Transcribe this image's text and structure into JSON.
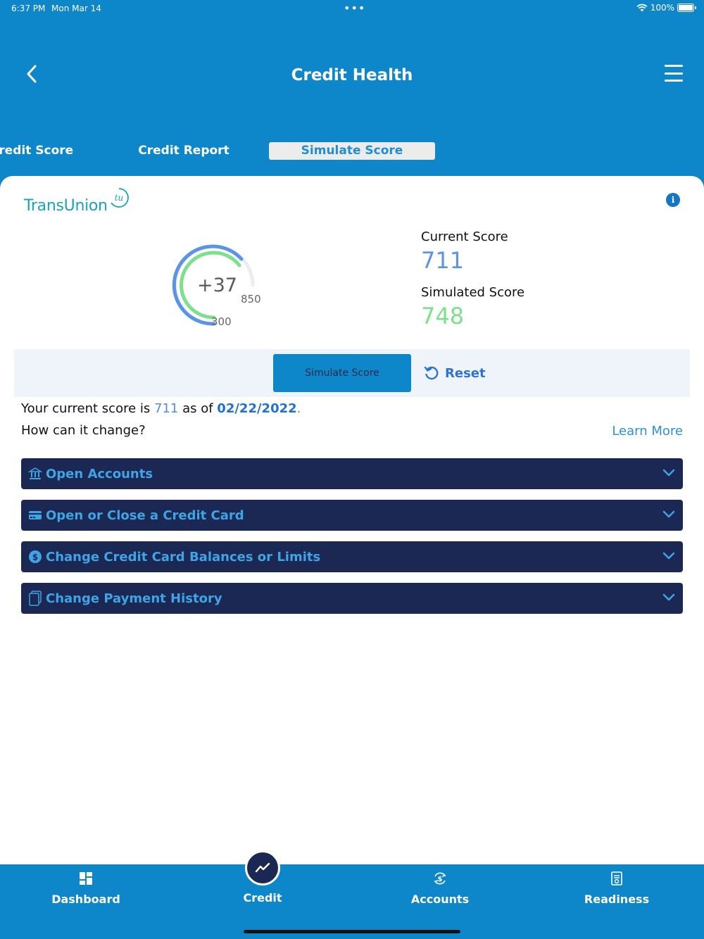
{
  "status_bar": {
    "time": "6:37 PM",
    "date": "Mon Mar 14",
    "battery": "100%"
  },
  "header": {
    "title": "Credit Health"
  },
  "tabs": [
    {
      "label": "Credit Score"
    },
    {
      "label": "Credit Report"
    },
    {
      "label": "Simulate Score"
    }
  ],
  "card": {
    "logo_text": "TransUnion",
    "logo_mark": "tu",
    "gauge": {
      "delta": "+37",
      "min": "300",
      "max": "850"
    },
    "current_score_label": "Current Score",
    "current_score": "711",
    "simulated_score_label": "Simulated Score",
    "simulated_score": "748",
    "simulate_button": "Simulate Score",
    "reset_button": "Reset",
    "summary": {
      "prefix": "Your current score is ",
      "score": "711",
      "middle": " as of ",
      "date": "02/22/2022",
      "suffix": "."
    },
    "question": "How can it change?",
    "learn_more": "Learn More",
    "accordions": [
      {
        "label": "Open Accounts",
        "icon": "bank-icon"
      },
      {
        "label": "Open or Close a Credit Card",
        "icon": "credit-card-icon"
      },
      {
        "label": "Change Credit Card Balances or Limits",
        "icon": "dollar-coin-icon"
      },
      {
        "label": "Change Payment History",
        "icon": "documents-icon"
      }
    ]
  },
  "tabbar": {
    "items": [
      {
        "label": "Dashboard",
        "icon": "dashboard-icon"
      },
      {
        "label": "Credit",
        "icon": "trend-line-icon"
      },
      {
        "label": "Accounts",
        "icon": "accounts-icon"
      },
      {
        "label": "Readiness",
        "icon": "readiness-icon"
      }
    ]
  },
  "colors": {
    "brand_blue": "#0d87c9",
    "navy": "#1b2854",
    "current_score": "#5b93e6",
    "simulated_score": "#7ee08c"
  }
}
